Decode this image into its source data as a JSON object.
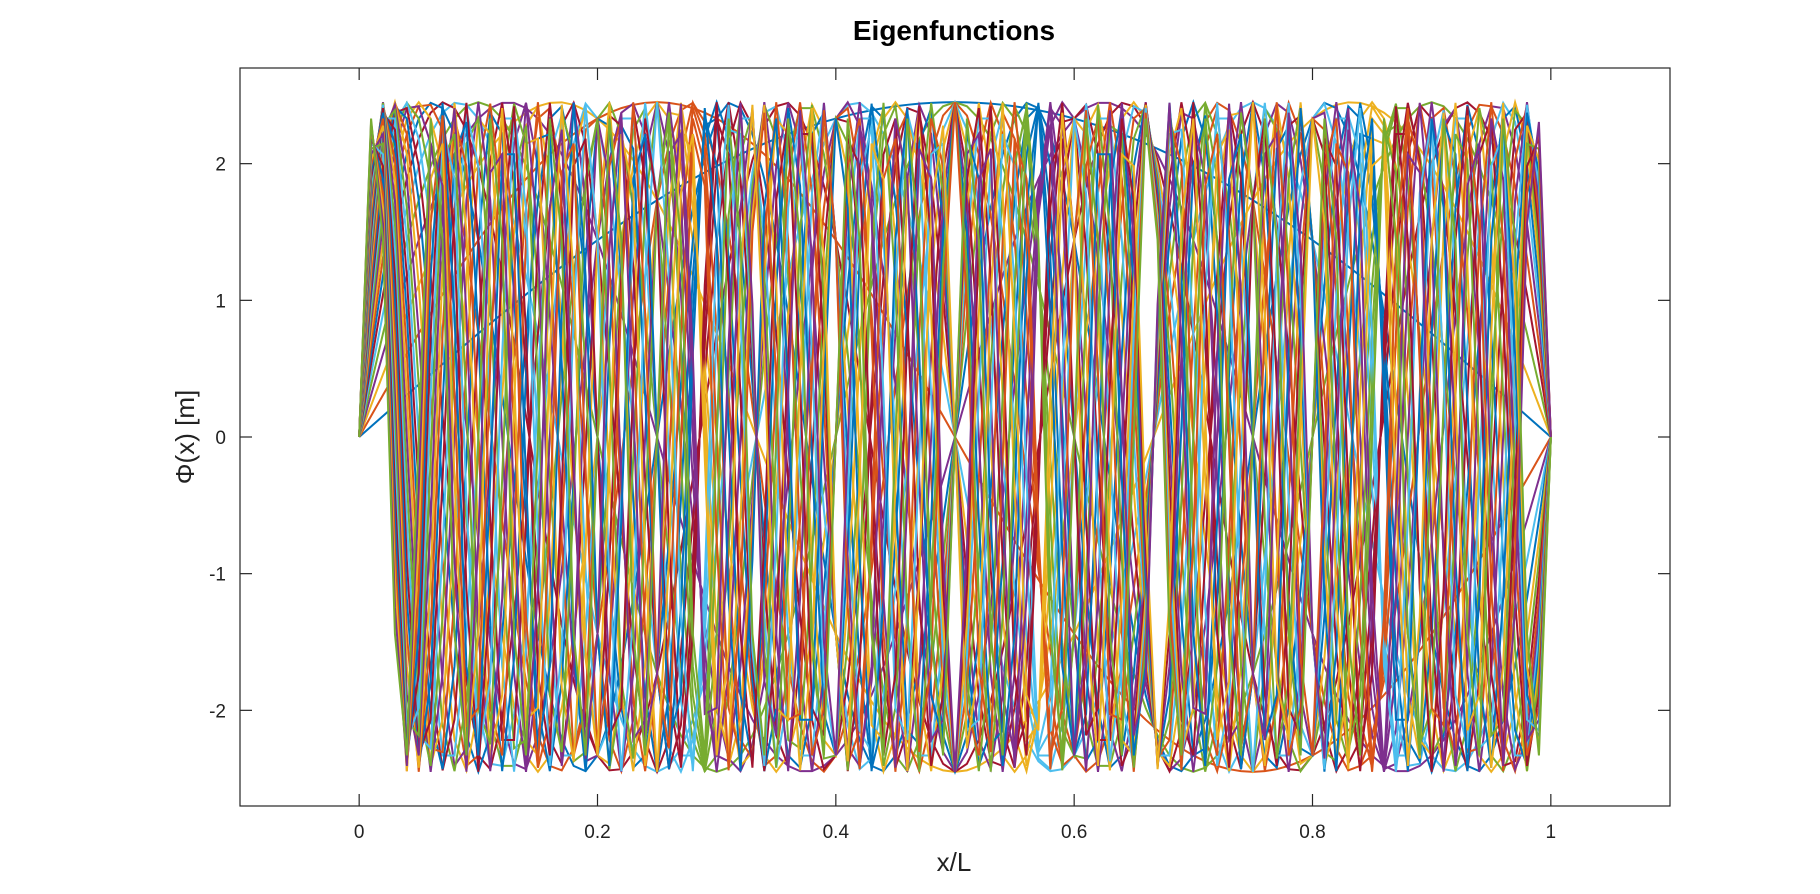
{
  "chart_data": {
    "type": "line",
    "title": "Eigenfunctions",
    "xlabel": "x/L",
    "ylabel": "Φ(x) [m]",
    "xlim": [
      -0.1,
      1.1
    ],
    "ylim": [
      -2.7,
      2.7
    ],
    "xticks": [
      0,
      0.2,
      0.4,
      0.6,
      0.8,
      1
    ],
    "xtick_labels": [
      "0",
      "0.2",
      "0.4",
      "0.6",
      "0.8",
      "1"
    ],
    "yticks": [
      -2,
      -1,
      0,
      1,
      2
    ],
    "ytick_labels": [
      "-2",
      "-1",
      "0",
      "1",
      "2"
    ],
    "grid": false,
    "legend": "none",
    "series_description": "Mode shapes of a string: Φ_n(x) = A·sin(nπx/L), n = 1 … 40, sampled at x/L = 0, 0.01, …, 1",
    "amplitude": 2.45,
    "modes": 40,
    "samples": 101,
    "color_cycle": [
      "#0072BD",
      "#D95319",
      "#EDB120",
      "#7E2F8E",
      "#77AC30",
      "#4DBEEE",
      "#A2142F"
    ]
  }
}
